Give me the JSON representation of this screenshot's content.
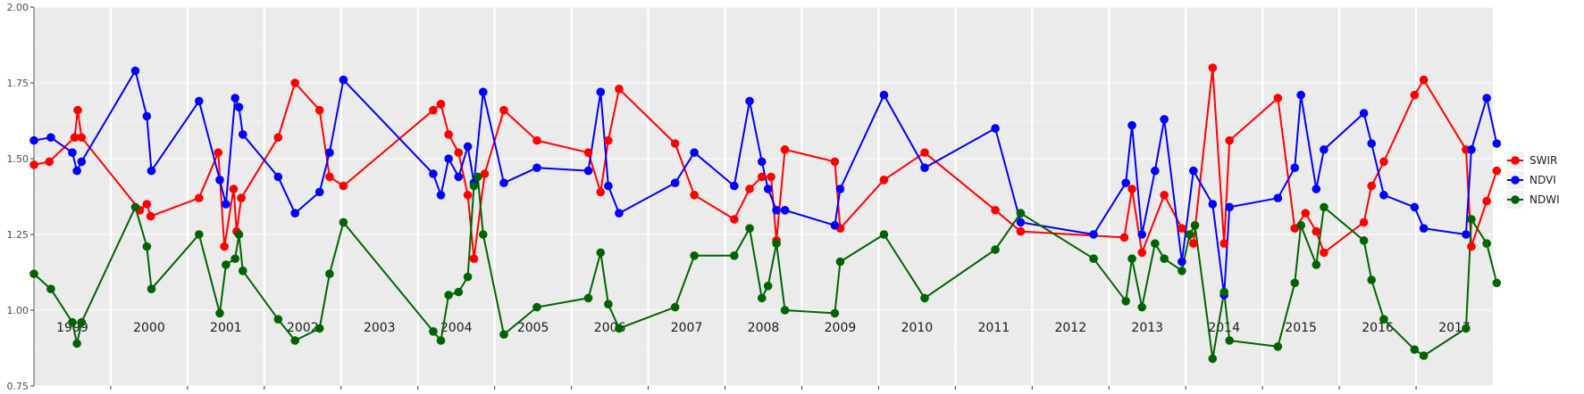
{
  "chart_data": {
    "type": "line",
    "title": "",
    "xlabel": "",
    "ylabel": "",
    "xlim": [
      1998.5,
      2017.5
    ],
    "ylim": [
      0.75,
      2.0
    ],
    "y_ticks": [
      "0.75",
      "1.00",
      "1.25",
      "1.50",
      "1.75",
      "2.00"
    ],
    "year_labels": [
      "1999",
      "2000",
      "2001",
      "2002",
      "2003",
      "2004",
      "2005",
      "2006",
      "2007",
      "2008",
      "2009",
      "2010",
      "2011",
      "2012",
      "2013",
      "2014",
      "2015",
      "2016",
      "2017"
    ],
    "grid": true,
    "legend_position": "right",
    "series": [
      {
        "name": "SWIR",
        "color": "#ff0000",
        "points": [
          [
            1998.5,
            1.48
          ],
          [
            1998.7,
            1.49
          ],
          [
            1999.03,
            1.57
          ],
          [
            1999.07,
            1.66
          ],
          [
            1999.12,
            1.57
          ],
          [
            1999.88,
            1.33
          ],
          [
            1999.97,
            1.35
          ],
          [
            2000.02,
            1.31
          ],
          [
            2000.65,
            1.37
          ],
          [
            2000.9,
            1.52
          ],
          [
            2000.98,
            1.21
          ],
          [
            2001.1,
            1.4
          ],
          [
            2001.14,
            1.26
          ],
          [
            2001.2,
            1.37
          ],
          [
            2001.68,
            1.57
          ],
          [
            2001.9,
            1.75
          ],
          [
            2002.22,
            1.66
          ],
          [
            2002.35,
            1.44
          ],
          [
            2002.53,
            1.41
          ],
          [
            2003.7,
            1.66
          ],
          [
            2003.8,
            1.68
          ],
          [
            2003.9,
            1.58
          ],
          [
            2004.03,
            1.52
          ],
          [
            2004.15,
            1.38
          ],
          [
            2004.23,
            1.17
          ],
          [
            2004.37,
            1.45
          ],
          [
            2004.62,
            1.66
          ],
          [
            2005.05,
            1.56
          ],
          [
            2005.72,
            1.52
          ],
          [
            2005.88,
            1.39
          ],
          [
            2005.98,
            1.56
          ],
          [
            2006.12,
            1.73
          ],
          [
            2006.85,
            1.55
          ],
          [
            2007.1,
            1.38
          ],
          [
            2007.62,
            1.3
          ],
          [
            2007.82,
            1.4
          ],
          [
            2007.98,
            1.44
          ],
          [
            2008.1,
            1.44
          ],
          [
            2008.17,
            1.23
          ],
          [
            2008.28,
            1.53
          ],
          [
            2008.93,
            1.49
          ],
          [
            2009.0,
            1.27
          ],
          [
            2009.57,
            1.43
          ],
          [
            2010.1,
            1.52
          ],
          [
            2011.02,
            1.33
          ],
          [
            2011.35,
            1.26
          ],
          [
            2012.7,
            1.24
          ],
          [
            2012.8,
            1.4
          ],
          [
            2012.93,
            1.19
          ],
          [
            2013.22,
            1.38
          ],
          [
            2013.45,
            1.27
          ],
          [
            2013.6,
            1.22
          ],
          [
            2013.85,
            1.8
          ],
          [
            2014.0,
            1.22
          ],
          [
            2014.07,
            1.56
          ],
          [
            2014.7,
            1.7
          ],
          [
            2014.92,
            1.27
          ],
          [
            2015.06,
            1.32
          ],
          [
            2015.2,
            1.26
          ],
          [
            2015.3,
            1.19
          ],
          [
            2015.82,
            1.29
          ],
          [
            2015.92,
            1.41
          ],
          [
            2016.08,
            1.49
          ],
          [
            2016.48,
            1.71
          ],
          [
            2016.6,
            1.76
          ],
          [
            2017.15,
            1.53
          ],
          [
            2017.22,
            1.21
          ],
          [
            2017.42,
            1.36
          ],
          [
            2017.55,
            1.46
          ]
        ]
      },
      {
        "name": "NDVI",
        "color": "#0000ff",
        "points": [
          [
            1998.5,
            1.56
          ],
          [
            1998.72,
            1.57
          ],
          [
            1999.0,
            1.52
          ],
          [
            1999.06,
            1.46
          ],
          [
            1999.12,
            1.49
          ],
          [
            1999.82,
            1.79
          ],
          [
            1999.97,
            1.64
          ],
          [
            2000.03,
            1.46
          ],
          [
            2000.65,
            1.69
          ],
          [
            2000.92,
            1.43
          ],
          [
            2001.0,
            1.35
          ],
          [
            2001.12,
            1.7
          ],
          [
            2001.17,
            1.67
          ],
          [
            2001.22,
            1.58
          ],
          [
            2001.68,
            1.44
          ],
          [
            2001.9,
            1.32
          ],
          [
            2002.22,
            1.39
          ],
          [
            2002.35,
            1.52
          ],
          [
            2002.53,
            1.76
          ],
          [
            2003.7,
            1.45
          ],
          [
            2003.8,
            1.38
          ],
          [
            2003.9,
            1.5
          ],
          [
            2004.03,
            1.44
          ],
          [
            2004.15,
            1.54
          ],
          [
            2004.23,
            1.42
          ],
          [
            2004.35,
            1.72
          ],
          [
            2004.62,
            1.42
          ],
          [
            2005.05,
            1.47
          ],
          [
            2005.72,
            1.46
          ],
          [
            2005.88,
            1.72
          ],
          [
            2005.98,
            1.41
          ],
          [
            2006.12,
            1.32
          ],
          [
            2006.85,
            1.42
          ],
          [
            2007.1,
            1.52
          ],
          [
            2007.62,
            1.41
          ],
          [
            2007.82,
            1.69
          ],
          [
            2007.98,
            1.49
          ],
          [
            2008.06,
            1.4
          ],
          [
            2008.17,
            1.33
          ],
          [
            2008.28,
            1.33
          ],
          [
            2008.93,
            1.28
          ],
          [
            2009.0,
            1.4
          ],
          [
            2009.57,
            1.71
          ],
          [
            2010.1,
            1.47
          ],
          [
            2011.02,
            1.6
          ],
          [
            2011.35,
            1.29
          ],
          [
            2012.3,
            1.25
          ],
          [
            2012.72,
            1.42
          ],
          [
            2012.8,
            1.61
          ],
          [
            2012.93,
            1.25
          ],
          [
            2013.1,
            1.46
          ],
          [
            2013.22,
            1.63
          ],
          [
            2013.45,
            1.16
          ],
          [
            2013.6,
            1.46
          ],
          [
            2013.85,
            1.35
          ],
          [
            2014.0,
            1.05
          ],
          [
            2014.07,
            1.34
          ],
          [
            2014.7,
            1.37
          ],
          [
            2014.92,
            1.47
          ],
          [
            2015.0,
            1.71
          ],
          [
            2015.2,
            1.4
          ],
          [
            2015.3,
            1.53
          ],
          [
            2015.82,
            1.65
          ],
          [
            2015.92,
            1.55
          ],
          [
            2016.08,
            1.38
          ],
          [
            2016.48,
            1.34
          ],
          [
            2016.6,
            1.27
          ],
          [
            2017.15,
            1.25
          ],
          [
            2017.22,
            1.53
          ],
          [
            2017.42,
            1.7
          ],
          [
            2017.55,
            1.55
          ]
        ]
      },
      {
        "name": "NDWI",
        "color": "#006400",
        "points": [
          [
            1998.5,
            1.12
          ],
          [
            1998.72,
            1.07
          ],
          [
            1999.0,
            0.96
          ],
          [
            1999.06,
            0.89
          ],
          [
            1999.12,
            0.96
          ],
          [
            1999.82,
            1.34
          ],
          [
            1999.97,
            1.21
          ],
          [
            2000.03,
            1.07
          ],
          [
            2000.65,
            1.25
          ],
          [
            2000.92,
            0.99
          ],
          [
            2001.0,
            1.15
          ],
          [
            2001.12,
            1.17
          ],
          [
            2001.17,
            1.25
          ],
          [
            2001.22,
            1.13
          ],
          [
            2001.68,
            0.97
          ],
          [
            2001.9,
            0.9
          ],
          [
            2002.22,
            0.94
          ],
          [
            2002.35,
            1.12
          ],
          [
            2002.53,
            1.29
          ],
          [
            2003.7,
            0.93
          ],
          [
            2003.8,
            0.9
          ],
          [
            2003.9,
            1.05
          ],
          [
            2004.03,
            1.06
          ],
          [
            2004.15,
            1.11
          ],
          [
            2004.23,
            1.41
          ],
          [
            2004.28,
            1.44
          ],
          [
            2004.35,
            1.25
          ],
          [
            2004.62,
            0.92
          ],
          [
            2005.05,
            1.01
          ],
          [
            2005.72,
            1.04
          ],
          [
            2005.88,
            1.19
          ],
          [
            2005.98,
            1.02
          ],
          [
            2006.12,
            0.94
          ],
          [
            2006.85,
            1.01
          ],
          [
            2007.1,
            1.18
          ],
          [
            2007.62,
            1.18
          ],
          [
            2007.82,
            1.27
          ],
          [
            2007.98,
            1.04
          ],
          [
            2008.06,
            1.08
          ],
          [
            2008.17,
            1.22
          ],
          [
            2008.28,
            1.0
          ],
          [
            2008.93,
            0.99
          ],
          [
            2009.0,
            1.16
          ],
          [
            2009.57,
            1.25
          ],
          [
            2010.1,
            1.04
          ],
          [
            2011.02,
            1.2
          ],
          [
            2011.35,
            1.32
          ],
          [
            2012.3,
            1.17
          ],
          [
            2012.72,
            1.03
          ],
          [
            2012.8,
            1.17
          ],
          [
            2012.93,
            1.01
          ],
          [
            2013.1,
            1.22
          ],
          [
            2013.22,
            1.17
          ],
          [
            2013.45,
            1.13
          ],
          [
            2013.55,
            1.25
          ],
          [
            2013.62,
            1.28
          ],
          [
            2013.85,
            0.84
          ],
          [
            2014.0,
            1.06
          ],
          [
            2014.07,
            0.9
          ],
          [
            2014.7,
            0.88
          ],
          [
            2014.92,
            1.09
          ],
          [
            2015.0,
            1.28
          ],
          [
            2015.2,
            1.15
          ],
          [
            2015.3,
            1.34
          ],
          [
            2015.82,
            1.23
          ],
          [
            2015.92,
            1.1
          ],
          [
            2016.08,
            0.97
          ],
          [
            2016.48,
            0.87
          ],
          [
            2016.6,
            0.85
          ],
          [
            2017.15,
            0.94
          ],
          [
            2017.22,
            1.3
          ],
          [
            2017.42,
            1.22
          ],
          [
            2017.55,
            1.09
          ]
        ]
      }
    ]
  }
}
